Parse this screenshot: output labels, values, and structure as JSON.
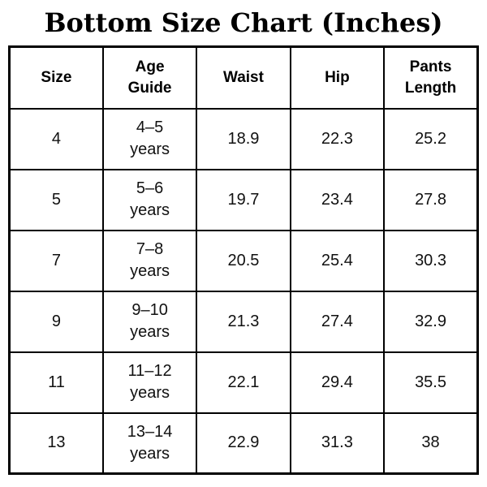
{
  "page": {
    "title": "Bottom Size Chart (Inches)"
  },
  "chart_data": {
    "type": "table",
    "title": "Bottom Size Chart (Inches)",
    "units": "inches",
    "columns": [
      "Size",
      "Age Guide",
      "Waist",
      "Hip",
      "Pants Length"
    ],
    "rows": [
      [
        "4",
        "4–5 years",
        18.9,
        22.3,
        25.2
      ],
      [
        "5",
        "5–6 years",
        19.7,
        23.4,
        27.8
      ],
      [
        "7",
        "7–8 years",
        20.5,
        25.4,
        30.3
      ],
      [
        "9",
        "9–10 years",
        21.3,
        27.4,
        32.9
      ],
      [
        "11",
        "11–12 years",
        22.1,
        29.4,
        35.5
      ],
      [
        "13",
        "13–14 years",
        22.9,
        31.3,
        38
      ]
    ]
  },
  "table": {
    "headers": [
      "Size",
      "Age\nGuide",
      "Waist",
      "Hip",
      "Pants\nLength"
    ],
    "rows": [
      [
        "4",
        "4–5\nyears",
        "18.9",
        "22.3",
        "25.2"
      ],
      [
        "5",
        "5–6\nyears",
        "19.7",
        "23.4",
        "27.8"
      ],
      [
        "7",
        "7–8\nyears",
        "20.5",
        "25.4",
        "30.3"
      ],
      [
        "9",
        "9–10\nyears",
        "21.3",
        "27.4",
        "32.9"
      ],
      [
        "11",
        "11–12\nyears",
        "22.1",
        "29.4",
        "35.5"
      ],
      [
        "13",
        "13–14\nyears",
        "22.9",
        "31.3",
        "38"
      ]
    ]
  },
  "colors": {
    "background": "#ffffff",
    "border": "#000000",
    "text": "#000000"
  }
}
